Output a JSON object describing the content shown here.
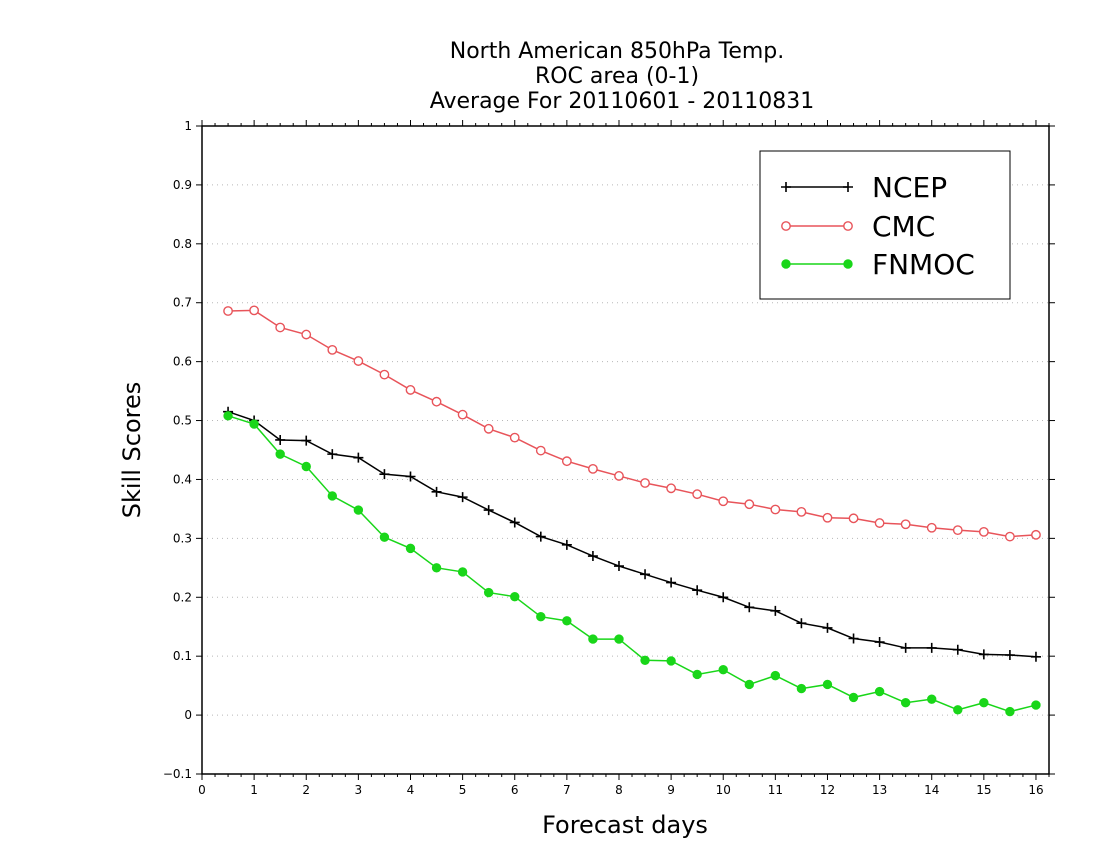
{
  "chart_data": {
    "type": "line",
    "title": [
      "North American 850hPa Temp.",
      "ROC area (0-1)",
      "Average For 20110601 - 20110831"
    ],
    "xlabel": "Forecast days",
    "ylabel": "Skill Scores",
    "xlim": [
      0,
      16.25
    ],
    "ylim": [
      -0.1,
      1
    ],
    "xticks": [
      0,
      1,
      2,
      3,
      4,
      5,
      6,
      7,
      8,
      9,
      10,
      11,
      12,
      13,
      14,
      15,
      16
    ],
    "yticks": [
      -0.1,
      0,
      0.1,
      0.2,
      0.3,
      0.4,
      0.5,
      0.6,
      0.7,
      0.8,
      0.9,
      1
    ],
    "ytick_labels": [
      "−0.1",
      "0",
      "0.1",
      "0.2",
      "0.3",
      "0.4",
      "0.5",
      "0.6",
      "0.7",
      "0.8",
      "0.9",
      "1"
    ],
    "grid": "horizontal dotted",
    "legend_position": "top-right",
    "x": [
      0.5,
      1.0,
      1.5,
      2.0,
      2.5,
      3.0,
      3.5,
      4.0,
      4.5,
      5.0,
      5.5,
      6.0,
      6.5,
      7.0,
      7.5,
      8.0,
      8.5,
      9.0,
      9.5,
      10.0,
      10.5,
      11.0,
      11.5,
      12.0,
      12.5,
      13.0,
      13.5,
      14.0,
      14.5,
      15.0,
      15.5,
      16.0
    ],
    "series": [
      {
        "name": "NCEP",
        "color": "#000000",
        "marker": "plus",
        "values": [
          0.515,
          0.5,
          0.467,
          0.466,
          0.443,
          0.437,
          0.409,
          0.405,
          0.379,
          0.37,
          0.348,
          0.327,
          0.303,
          0.289,
          0.27,
          0.253,
          0.239,
          0.225,
          0.212,
          0.2,
          0.183,
          0.177,
          0.156,
          0.148,
          0.13,
          0.124,
          0.114,
          0.114,
          0.111,
          0.103,
          0.102,
          0.099
        ]
      },
      {
        "name": "CMC",
        "color": "#e8545a",
        "marker": "open-circle",
        "values": [
          0.686,
          0.687,
          0.658,
          0.646,
          0.62,
          0.601,
          0.578,
          0.552,
          0.532,
          0.51,
          0.486,
          0.471,
          0.449,
          0.431,
          0.418,
          0.406,
          0.394,
          0.385,
          0.375,
          0.363,
          0.358,
          0.349,
          0.345,
          0.335,
          0.334,
          0.326,
          0.324,
          0.318,
          0.314,
          0.311,
          0.303,
          0.306
        ]
      },
      {
        "name": "FNMOC",
        "color": "#19d619",
        "marker": "filled-circle",
        "values": [
          0.508,
          0.494,
          0.443,
          0.422,
          0.372,
          0.348,
          0.302,
          0.283,
          0.25,
          0.243,
          0.208,
          0.201,
          0.167,
          0.16,
          0.129,
          0.129,
          0.093,
          0.092,
          0.069,
          0.077,
          0.052,
          0.067,
          0.045,
          0.052,
          0.03,
          0.04,
          0.021,
          0.027,
          0.009,
          0.021,
          0.006,
          0.017
        ]
      }
    ]
  }
}
